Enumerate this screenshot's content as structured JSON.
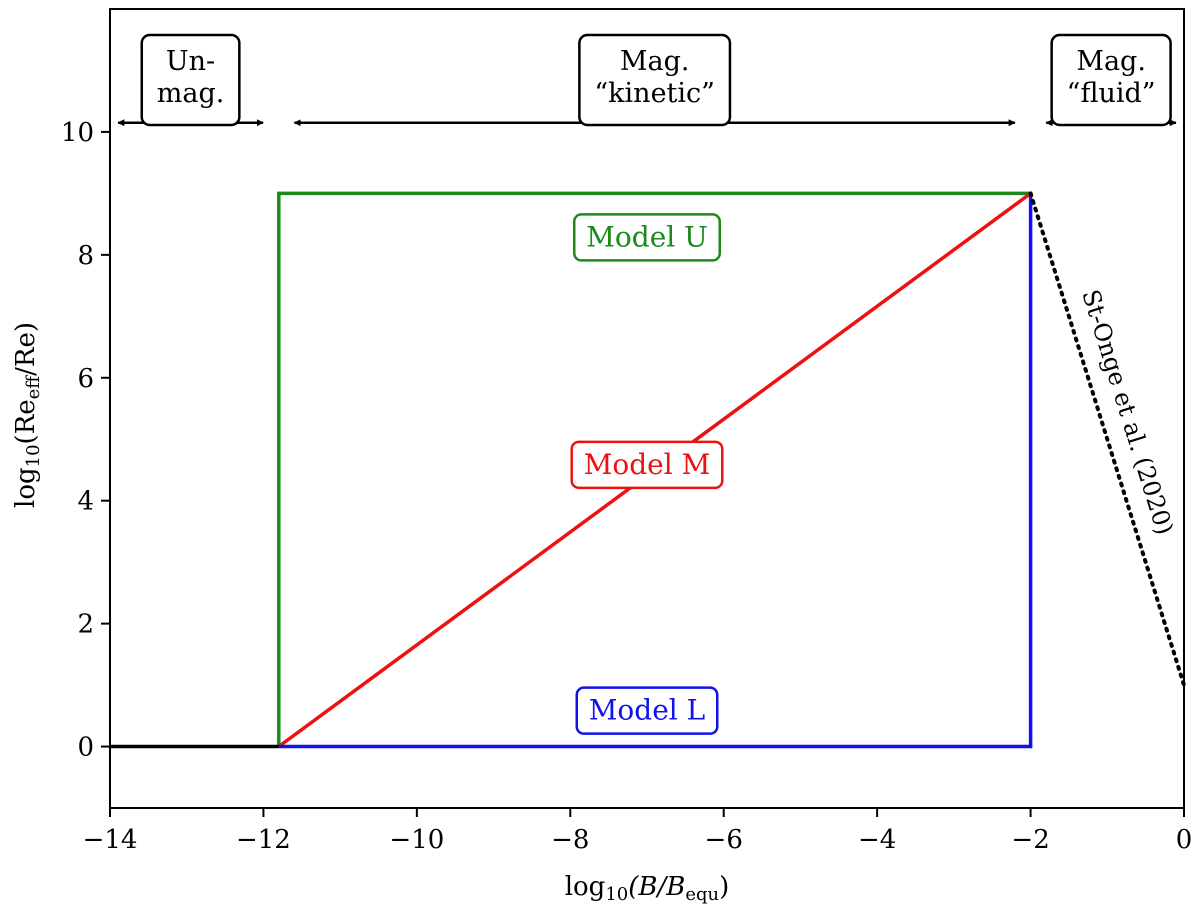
{
  "chart_data": {
    "type": "line",
    "xlabel": {
      "prefix": "log",
      "sub": "10",
      "body": "(B/B",
      "body_sub": "equ",
      "suffix": ")"
    },
    "ylabel": {
      "prefix": "log",
      "sub": "10",
      "body": "(Re",
      "body_sub": "eff",
      "suffix": "/Re)"
    },
    "xlim": [
      -14,
      0
    ],
    "ylim": [
      -1,
      12
    ],
    "xticks": [
      -14,
      -12,
      -10,
      -8,
      -6,
      -4,
      -2,
      0
    ],
    "xtick_labels": [
      "−14",
      "−12",
      "−10",
      "−8",
      "−6",
      "−4",
      "−2",
      "0"
    ],
    "yticks": [
      0,
      2,
      4,
      6,
      8,
      10
    ],
    "ytick_labels": [
      "0",
      "2",
      "4",
      "6",
      "8",
      "10"
    ],
    "grid": false,
    "series": [
      {
        "name": "Model U",
        "color": "#1a8a1a",
        "style": "solid",
        "x": [
          -11.8,
          -11.8,
          -2
        ],
        "y": [
          0,
          9,
          9
        ],
        "label_at": [
          -7,
          8.3
        ]
      },
      {
        "name": "Model M",
        "color": "#ee1111",
        "style": "solid",
        "x": [
          -11.8,
          -2
        ],
        "y": [
          0,
          9
        ],
        "label_at": [
          -7,
          4.6
        ]
      },
      {
        "name": "Model L",
        "color": "#1111ee",
        "style": "solid",
        "x": [
          -11.8,
          -2,
          -2
        ],
        "y": [
          0,
          0,
          9
        ],
        "label_at": [
          -7,
          0.6
        ]
      },
      {
        "name": "",
        "color": "#000000",
        "style": "solid",
        "x": [
          -14,
          -11.8
        ],
        "y": [
          0,
          0
        ]
      },
      {
        "name": "",
        "color": "#000000",
        "style": "dotted",
        "x": [
          -2,
          0
        ],
        "y": [
          9,
          1
        ]
      }
    ],
    "regions": [
      {
        "lines": [
          "Un-",
          "mag."
        ],
        "x_range": [
          -14,
          -11.9
        ]
      },
      {
        "lines": [
          "Mag.",
          "“kinetic”"
        ],
        "x_range": [
          -11.7,
          -2.1
        ]
      },
      {
        "lines": [
          "Mag.",
          "“fluid”"
        ],
        "x_range": [
          -1.9,
          0
        ]
      }
    ],
    "region_arrow_y": 10.15,
    "annotation": {
      "text": "St-Onge et al. (2020)"
    }
  }
}
